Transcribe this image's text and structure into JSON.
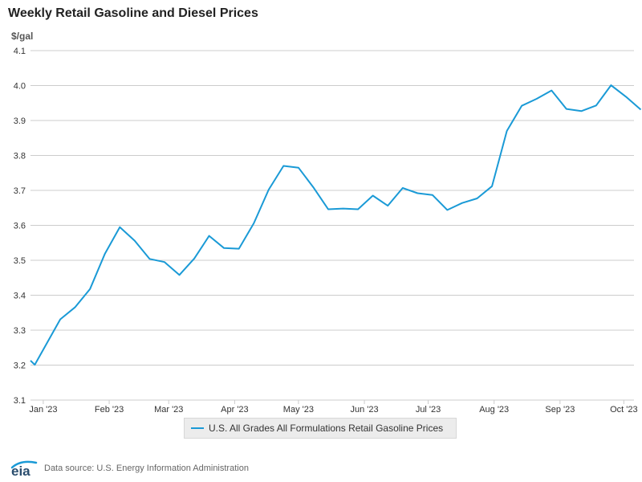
{
  "header": {
    "title": "Weekly Retail Gasoline and Diesel Prices",
    "units": "$/gal"
  },
  "footer": {
    "source": "Data source: U.S. Energy Information Administration",
    "logo_text": "eia"
  },
  "colors": {
    "series": "#1a9ad6",
    "grid": "#cccccc",
    "axis_text": "#333333"
  },
  "chart_data": {
    "type": "line",
    "title": "Weekly Retail Gasoline and Diesel Prices",
    "ylabel": "$/gal",
    "xlabel": "",
    "ylim": [
      3.1,
      4.1
    ],
    "y_ticks": [
      "3.1",
      "3.2",
      "3.3",
      "3.4",
      "3.5",
      "3.6",
      "3.7",
      "3.8",
      "3.9",
      "4.0",
      "4.1"
    ],
    "x_range": [
      "2022-12-26",
      "2023-10-02"
    ],
    "x_ticks": [
      {
        "label": "Jan '23",
        "date": "2023-01-01"
      },
      {
        "label": "Feb '23",
        "date": "2023-02-01"
      },
      {
        "label": "Mar '23",
        "date": "2023-03-01"
      },
      {
        "label": "Apr '23",
        "date": "2023-04-01"
      },
      {
        "label": "May '23",
        "date": "2023-05-01"
      },
      {
        "label": "Jun '23",
        "date": "2023-06-01"
      },
      {
        "label": "Jul '23",
        "date": "2023-07-01"
      },
      {
        "label": "Aug '23",
        "date": "2023-08-01"
      },
      {
        "label": "Sep '23",
        "date": "2023-09-01"
      },
      {
        "label": "Oct '23",
        "date": "2023-10-01"
      }
    ],
    "grid": true,
    "legend_position": "bottom",
    "series": [
      {
        "name": "U.S. All Grades All Formulations Retail Gasoline Prices",
        "points": [
          [
            "2022-12-26",
            3.213
          ],
          [
            "2022-12-28",
            3.201
          ],
          [
            "2023-01-09",
            3.331
          ],
          [
            "2023-01-16",
            3.366
          ],
          [
            "2023-01-23",
            3.418
          ],
          [
            "2023-01-30",
            3.519
          ],
          [
            "2023-02-06",
            3.595
          ],
          [
            "2023-02-13",
            3.556
          ],
          [
            "2023-02-20",
            3.504
          ],
          [
            "2023-02-27",
            3.495
          ],
          [
            "2023-03-06",
            3.458
          ],
          [
            "2023-03-13",
            3.505
          ],
          [
            "2023-03-20",
            3.57
          ],
          [
            "2023-03-27",
            3.535
          ],
          [
            "2023-04-03",
            3.533
          ],
          [
            "2023-04-10",
            3.606
          ],
          [
            "2023-04-17",
            3.702
          ],
          [
            "2023-04-24",
            3.77
          ],
          [
            "2023-05-01",
            3.765
          ],
          [
            "2023-05-08",
            3.709
          ],
          [
            "2023-05-15",
            3.646
          ],
          [
            "2023-05-22",
            3.648
          ],
          [
            "2023-05-29",
            3.646
          ],
          [
            "2023-06-05",
            3.685
          ],
          [
            "2023-06-12",
            3.656
          ],
          [
            "2023-06-19",
            3.707
          ],
          [
            "2023-06-26",
            3.692
          ],
          [
            "2023-07-03",
            3.687
          ],
          [
            "2023-07-10",
            3.644
          ],
          [
            "2023-07-17",
            3.664
          ],
          [
            "2023-07-24",
            3.677
          ],
          [
            "2023-07-31",
            3.712
          ],
          [
            "2023-08-07",
            3.87
          ],
          [
            "2023-08-14",
            3.942
          ],
          [
            "2023-08-21",
            3.962
          ],
          [
            "2023-08-28",
            3.986
          ],
          [
            "2023-09-04",
            3.933
          ],
          [
            "2023-09-11",
            3.927
          ],
          [
            "2023-09-18",
            3.943
          ],
          [
            "2023-09-25",
            4.001
          ],
          [
            "2023-10-02",
            3.968
          ],
          [
            "2023-10-09",
            3.931
          ]
        ]
      }
    ]
  }
}
